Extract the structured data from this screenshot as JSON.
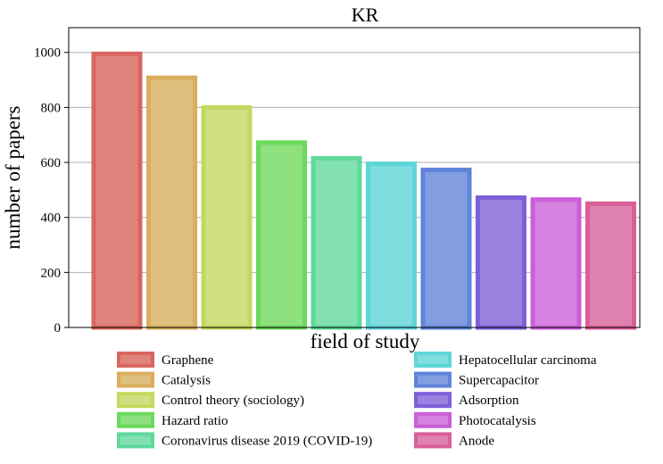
{
  "chart_data": {
    "type": "bar",
    "title": "KR",
    "xlabel": "field of study",
    "ylabel": "number of papers",
    "ylim": [
      0,
      1090
    ],
    "yticks": [
      0,
      200,
      400,
      600,
      800,
      1000
    ],
    "grid": "horizontal",
    "legend_position": "bottom",
    "categories": [
      "Graphene",
      "Catalysis",
      "Control theory (sociology)",
      "Hazard ratio",
      "Coronavirus disease 2019 (COVID-19)",
      "Hepatocellular carcinoma",
      "Supercapacitor",
      "Adsorption",
      "Photocatalysis",
      "Anode"
    ],
    "values": [
      995,
      908,
      800,
      672,
      615,
      595,
      573,
      472,
      465,
      450
    ],
    "colors": [
      "#e0837c",
      "#e0c07f",
      "#cfe080",
      "#8fe07f",
      "#83e0b1",
      "#80dde0",
      "#829ee0",
      "#9b82e0",
      "#d582e0",
      "#e082b0"
    ],
    "edge_colors": [
      "#d9675f",
      "#d9ae5c",
      "#c2d95e",
      "#6bd95c",
      "#5fd99b",
      "#5dd5d9",
      "#5f84d9",
      "#7d5fd9",
      "#ca5fd9",
      "#d95f99"
    ]
  }
}
